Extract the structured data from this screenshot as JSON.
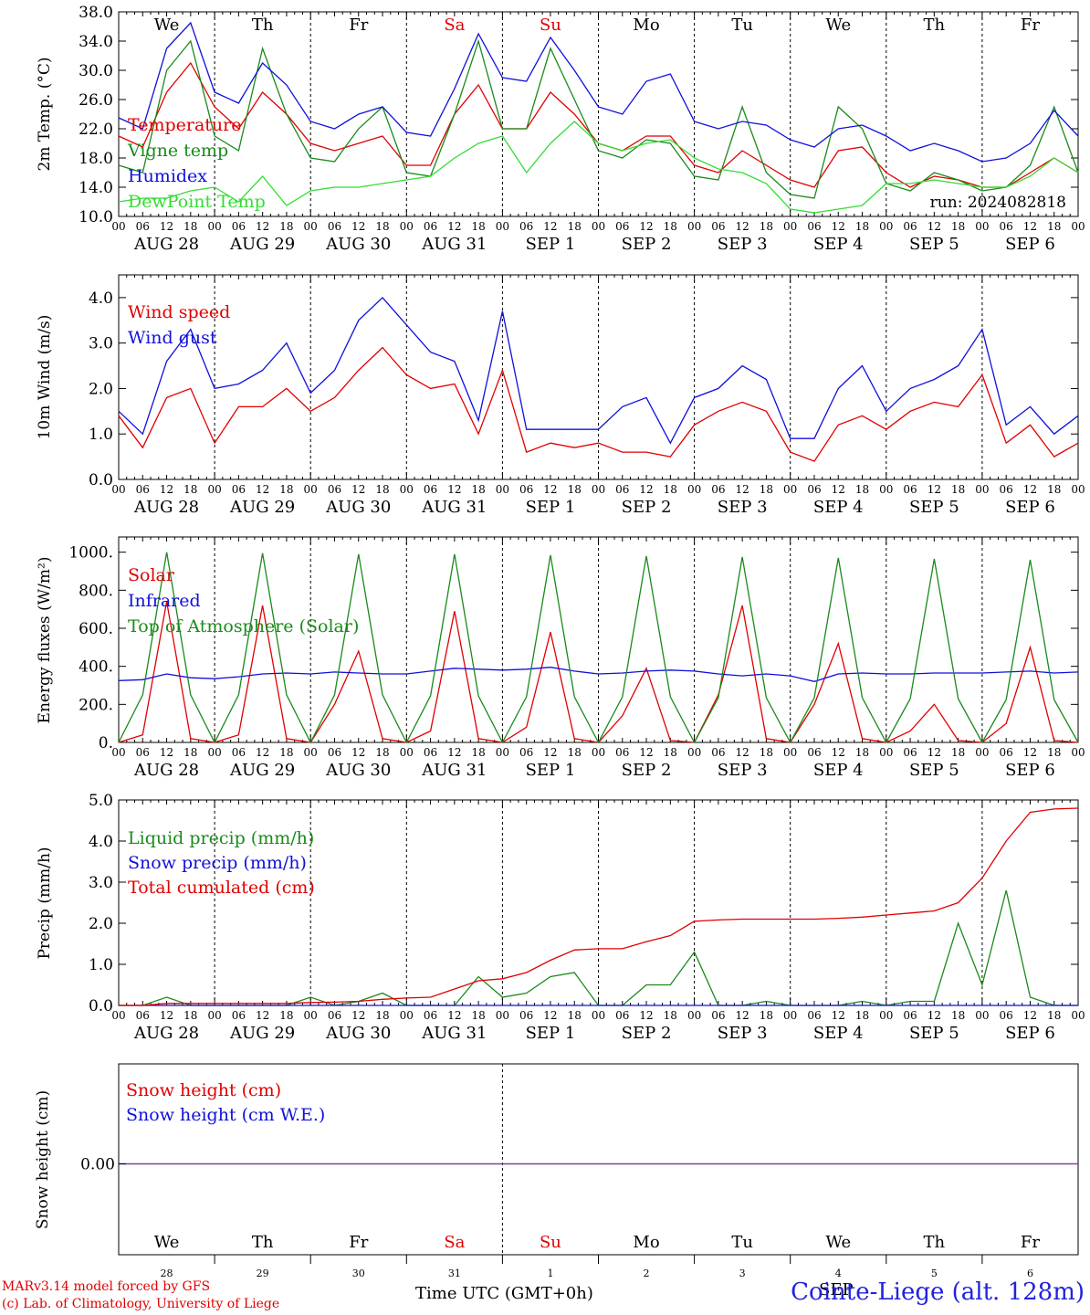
{
  "days_of_week": [
    "We",
    "Th",
    "Fr",
    "Sa",
    "Su",
    "Mo",
    "Tu",
    "We",
    "Th",
    "Fr"
  ],
  "weekend_indices": [
    3,
    4
  ],
  "date_labels": [
    "AUG 28",
    "AUG 29",
    "AUG 30",
    "AUG 31",
    "SEP  1",
    "SEP  2",
    "SEP  3",
    "SEP  4",
    "SEP  5",
    "SEP  6"
  ],
  "day_numbers": [
    "28",
    "29",
    "30",
    "31",
    "1",
    "2",
    "3",
    "4",
    "5",
    "6"
  ],
  "hour_ticks": [
    "00",
    "06",
    "12",
    "18"
  ],
  "hour_tick_last": "00",
  "run_label": "run: 2024082818",
  "colors": {
    "red": "#e00000",
    "green": "#1a8a1a",
    "blue": "#1010dd",
    "lightgreen": "#33dd33",
    "purple": "#8040a0"
  },
  "footer": {
    "model_line1": "MARv3.14 model forced by GFS",
    "model_line2": "(c) Lab. of Climatology, University of Liege",
    "time_axis": "Time UTC (GMT+0h)",
    "month_label": "SEP",
    "station": "Cointe-Liege (alt. 128m)"
  },
  "chart_data": [
    {
      "type": "line",
      "ylabel": "2m Temp. (°C)",
      "ylim": [
        10.0,
        38.0
      ],
      "yticks": [
        "10.0",
        "14.0",
        "18.0",
        "22.0",
        "26.0",
        "30.0",
        "34.0",
        "38.0"
      ],
      "x_hours": [
        0,
        6,
        12,
        18,
        24,
        30,
        36,
        42,
        48,
        54,
        60,
        66,
        72,
        78,
        84,
        90,
        96,
        102,
        108,
        114,
        120,
        126,
        132,
        138,
        144,
        150,
        156,
        162,
        168,
        174,
        180,
        186,
        192,
        198,
        204,
        210,
        216,
        222,
        228,
        234,
        240
      ],
      "series": [
        {
          "name": "Temperature",
          "color": "red",
          "values": [
            21.0,
            19.5,
            27.0,
            31.0,
            25.0,
            22.0,
            27.0,
            24.0,
            20.0,
            19.0,
            20.0,
            21.0,
            17.0,
            17.0,
            24.0,
            28.0,
            22.0,
            22.0,
            27.0,
            24.0,
            20.0,
            19.0,
            21.0,
            21.0,
            17.0,
            16.0,
            19.0,
            17.0,
            15.0,
            14.0,
            19.0,
            19.5,
            16.0,
            14.0,
            15.5,
            15.0,
            14.0,
            14.0,
            16.0,
            18.0,
            16.0
          ]
        },
        {
          "name": "Vigne temp",
          "color": "green",
          "values": [
            17.0,
            16.0,
            30.0,
            34.0,
            21.0,
            19.0,
            33.0,
            24.0,
            18.0,
            17.5,
            22.0,
            25.0,
            16.0,
            15.5,
            24.0,
            34.0,
            22.0,
            22.0,
            33.0,
            26.0,
            19.0,
            18.0,
            20.5,
            20.0,
            15.5,
            15.0,
            25.0,
            16.0,
            13.0,
            12.5,
            25.0,
            22.0,
            14.5,
            13.5,
            16.0,
            15.0,
            13.5,
            14.0,
            17.0,
            25.0,
            16.0
          ]
        },
        {
          "name": "Humidex",
          "color": "blue",
          "values": [
            23.5,
            22.0,
            33.0,
            36.5,
            27.0,
            25.5,
            31.0,
            28.0,
            23.0,
            22.0,
            24.0,
            25.0,
            21.5,
            21.0,
            27.5,
            35.0,
            29.0,
            28.5,
            34.5,
            30.0,
            25.0,
            24.0,
            28.5,
            29.5,
            23.0,
            22.0,
            23.0,
            22.5,
            20.5,
            19.5,
            22.0,
            22.5,
            21.0,
            19.0,
            20.0,
            19.0,
            17.5,
            18.0,
            20.0,
            24.5,
            21.0
          ]
        },
        {
          "name": "DewPoint Temp",
          "color": "lightgreen",
          "values": [
            12.0,
            12.5,
            12.5,
            13.5,
            14.0,
            12.0,
            15.5,
            11.5,
            13.5,
            14.0,
            14.0,
            14.5,
            15.0,
            15.5,
            18.0,
            20.0,
            21.0,
            16.0,
            20.0,
            23.0,
            20.0,
            19.0,
            20.0,
            20.5,
            18.0,
            16.5,
            16.0,
            14.5,
            11.0,
            10.5,
            11.0,
            11.5,
            14.5,
            14.5,
            15.0,
            14.5,
            14.0,
            14.0,
            15.5,
            18.0,
            16.0
          ]
        }
      ]
    },
    {
      "type": "line",
      "ylabel": "10m Wind (m/s)",
      "ylim": [
        0.0,
        4.5
      ],
      "yticks": [
        "0.0",
        "1.0",
        "2.0",
        "3.0",
        "4.0"
      ],
      "x_hours": [
        0,
        6,
        12,
        18,
        24,
        30,
        36,
        42,
        48,
        54,
        60,
        66,
        72,
        78,
        84,
        90,
        96,
        102,
        108,
        114,
        120,
        126,
        132,
        138,
        144,
        150,
        156,
        162,
        168,
        174,
        180,
        186,
        192,
        198,
        204,
        210,
        216,
        222,
        228,
        234,
        240
      ],
      "series": [
        {
          "name": "Wind speed",
          "color": "red",
          "values": [
            1.4,
            0.7,
            1.8,
            2.0,
            0.8,
            1.6,
            1.6,
            2.0,
            1.5,
            1.8,
            2.4,
            2.9,
            2.3,
            2.0,
            2.1,
            1.0,
            2.4,
            0.6,
            0.8,
            0.7,
            0.8,
            0.6,
            0.6,
            0.5,
            1.2,
            1.5,
            1.7,
            1.5,
            0.6,
            0.4,
            1.2,
            1.4,
            1.1,
            1.5,
            1.7,
            1.6,
            2.3,
            0.8,
            1.2,
            0.5,
            0.8
          ]
        },
        {
          "name": "Wind gust",
          "color": "blue",
          "values": [
            1.5,
            1.0,
            2.6,
            3.3,
            2.0,
            2.1,
            2.4,
            3.0,
            1.9,
            2.4,
            3.5,
            4.0,
            3.4,
            2.8,
            2.6,
            1.3,
            3.7,
            1.1,
            1.1,
            1.1,
            1.1,
            1.6,
            1.8,
            0.8,
            1.8,
            2.0,
            2.5,
            2.2,
            0.9,
            0.9,
            2.0,
            2.5,
            1.5,
            2.0,
            2.2,
            2.5,
            3.3,
            1.2,
            1.6,
            1.0,
            1.4
          ]
        }
      ]
    },
    {
      "type": "line",
      "ylabel": "Energy fluxes (W/m²)",
      "ylim": [
        0,
        1080
      ],
      "yticks": [
        "0.",
        "200.",
        "400.",
        "600.",
        "800.",
        "1000."
      ],
      "x_hours": [
        0,
        6,
        12,
        18,
        24,
        30,
        36,
        42,
        48,
        54,
        60,
        66,
        72,
        78,
        84,
        90,
        96,
        102,
        108,
        114,
        120,
        126,
        132,
        138,
        144,
        150,
        156,
        162,
        168,
        174,
        180,
        186,
        192,
        198,
        204,
        210,
        216,
        222,
        228,
        234,
        240
      ],
      "series": [
        {
          "name": "Solar",
          "color": "red",
          "values": [
            0,
            40,
            740,
            20,
            0,
            40,
            720,
            20,
            0,
            200,
            480,
            20,
            0,
            60,
            690,
            20,
            0,
            80,
            580,
            20,
            0,
            140,
            390,
            10,
            0,
            250,
            720,
            20,
            0,
            200,
            520,
            20,
            0,
            60,
            200,
            10,
            0,
            100,
            500,
            10,
            0
          ]
        },
        {
          "name": "Infrared",
          "color": "blue",
          "values": [
            325,
            330,
            360,
            340,
            335,
            345,
            360,
            365,
            360,
            370,
            365,
            360,
            360,
            375,
            390,
            385,
            380,
            385,
            395,
            375,
            360,
            365,
            375,
            380,
            375,
            360,
            350,
            360,
            350,
            320,
            360,
            365,
            360,
            360,
            365,
            365,
            365,
            370,
            375,
            365,
            370
          ]
        },
        {
          "name": "Top of Atmosphere (Solar)",
          "color": "green",
          "values": [
            0,
            250,
            1000,
            250,
            0,
            250,
            995,
            250,
            0,
            250,
            990,
            250,
            0,
            245,
            990,
            245,
            0,
            240,
            985,
            240,
            0,
            240,
            980,
            240,
            0,
            235,
            975,
            235,
            0,
            235,
            970,
            235,
            0,
            230,
            965,
            230,
            0,
            225,
            960,
            225,
            0
          ]
        }
      ]
    },
    {
      "type": "line",
      "ylabel": "Precip (mm/h)",
      "ylim": [
        0.0,
        5.0
      ],
      "yticks": [
        "0.0",
        "1.0",
        "2.0",
        "3.0",
        "4.0",
        "5.0"
      ],
      "x_hours": [
        0,
        6,
        12,
        18,
        24,
        30,
        36,
        42,
        48,
        54,
        60,
        66,
        72,
        78,
        84,
        90,
        96,
        102,
        108,
        114,
        120,
        126,
        132,
        138,
        144,
        150,
        156,
        162,
        168,
        174,
        180,
        186,
        192,
        198,
        204,
        210,
        216,
        222,
        228,
        234,
        240
      ],
      "series": [
        {
          "name": "Liquid precip (mm/h)",
          "color": "green",
          "values": [
            0,
            0,
            0.2,
            0,
            0,
            0,
            0,
            0,
            0.2,
            0,
            0.1,
            0.3,
            0,
            0,
            0,
            0.7,
            0.2,
            0.3,
            0.7,
            0.8,
            0,
            0,
            0.5,
            0.5,
            1.3,
            0,
            0,
            0.1,
            0,
            0,
            0,
            0.1,
            0,
            0.1,
            0.1,
            2.0,
            0.5,
            2.8,
            0.2,
            0,
            0
          ]
        },
        {
          "name": "Snow precip (mm/h)",
          "color": "blue",
          "values": [
            0,
            0,
            0,
            0,
            0,
            0,
            0,
            0,
            0,
            0,
            0,
            0,
            0,
            0,
            0,
            0,
            0,
            0,
            0,
            0,
            0,
            0,
            0,
            0,
            0,
            0,
            0,
            0,
            0,
            0,
            0,
            0,
            0,
            0,
            0,
            0,
            0,
            0,
            0,
            0,
            0
          ]
        },
        {
          "name": "Total cumulated (cm)",
          "color": "red",
          "values": [
            0,
            0,
            0.05,
            0.05,
            0.05,
            0.05,
            0.05,
            0.05,
            0.07,
            0.08,
            0.1,
            0.15,
            0.18,
            0.2,
            0.4,
            0.6,
            0.65,
            0.8,
            1.1,
            1.35,
            1.38,
            1.38,
            1.55,
            1.7,
            2.05,
            2.08,
            2.1,
            2.1,
            2.1,
            2.1,
            2.12,
            2.15,
            2.2,
            2.25,
            2.3,
            2.5,
            3.1,
            4.0,
            4.7,
            4.78,
            4.8
          ]
        }
      ]
    },
    {
      "type": "line",
      "ylabel": "Snow height (cm)",
      "yticks": [
        "0.00"
      ],
      "series": [
        {
          "name": "Snow height (cm)",
          "color": "red",
          "values": [
            0,
            0
          ]
        },
        {
          "name": "Snow height (cm W.E.)",
          "color": "blue",
          "values": [
            0,
            0
          ]
        }
      ]
    }
  ]
}
